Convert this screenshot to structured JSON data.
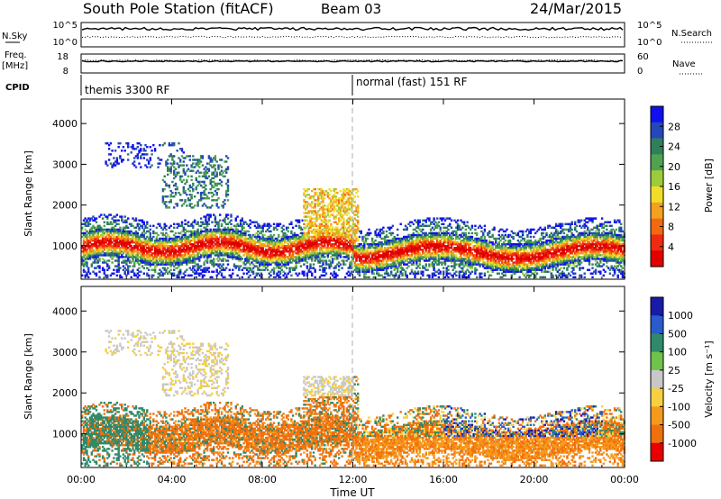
{
  "header": {
    "station": "South Pole Station (fitACF)",
    "beam": "Beam 03",
    "date": "24/Mar/2015"
  },
  "top_panels": {
    "nsky": {
      "label": "N.Sky",
      "ticks": [
        "10^5",
        "10^0"
      ]
    },
    "nsearch": {
      "label": "N.Search",
      "ticks": [
        "10^5",
        "10^0"
      ]
    },
    "freq": {
      "label_line1": "Freq.",
      "label_line2": "[MHz]",
      "ticks": [
        "18",
        "8"
      ]
    },
    "nave": {
      "label": "Nave",
      "ticks": [
        "60",
        "0"
      ]
    },
    "cpid": {
      "label": "CPID",
      "segments": [
        {
          "text": "themis 3300 RF",
          "start_hour": 0
        },
        {
          "text": "normal (fast) 151 RF",
          "start_hour": 12
        }
      ]
    }
  },
  "chart_data": [
    {
      "type": "heatmap",
      "title": "",
      "quantity": "Power",
      "xlabel": "Time UT",
      "ylabel": "Slant Range [km]",
      "xlim_hours": [
        0,
        24
      ],
      "ylim": [
        180,
        4600
      ],
      "x_ticks": [
        "00:00",
        "04:00",
        "08:00",
        "12:00",
        "16:00",
        "20:00",
        "00:00"
      ],
      "y_ticks": [
        1000,
        2000,
        3000,
        4000
      ],
      "colorbar": {
        "label": "Power [dB]",
        "ticks": [
          "28",
          "24",
          "20",
          "16",
          "12",
          "8",
          "4"
        ],
        "colors": [
          "#1010ee",
          "#2448b8",
          "#2e7f5a",
          "#4fa34f",
          "#9ccc3c",
          "#f2dc2a",
          "#f4a020",
          "#f26a10",
          "#ee2a10",
          "#e00000"
        ]
      }
    },
    {
      "type": "heatmap",
      "title": "",
      "quantity": "Velocity",
      "xlabel": "Time UT",
      "ylabel": "Slant Range [km]",
      "xlim_hours": [
        0,
        24
      ],
      "ylim": [
        180,
        4600
      ],
      "x_ticks": [
        "00:00",
        "04:00",
        "08:00",
        "12:00",
        "16:00",
        "20:00",
        "00:00"
      ],
      "y_ticks": [
        1000,
        2000,
        3000,
        4000
      ],
      "colorbar": {
        "label": "Velocity [m s⁻¹]",
        "ticks": [
          "1000",
          "500",
          "100",
          "25",
          "-25",
          "-100",
          "-500",
          "-1000"
        ],
        "colors": [
          "#1a1aa8",
          "#2a5acc",
          "#2e8a6a",
          "#6fc24a",
          "#c8c8c8",
          "#f6d040",
          "#f59a1c",
          "#f07010",
          "#e80000"
        ]
      }
    }
  ]
}
